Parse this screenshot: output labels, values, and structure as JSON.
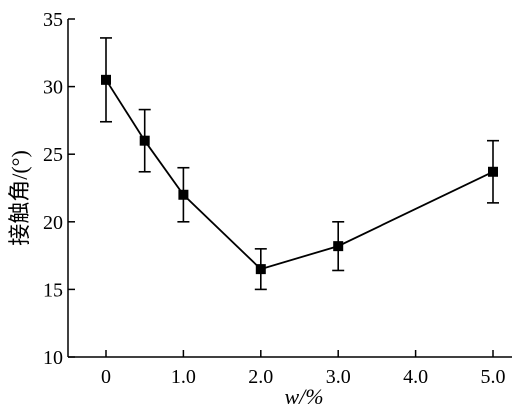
{
  "chart_data": {
    "type": "line",
    "title": "",
    "xlabel": "w/%",
    "ylabel": "接触角/(°)",
    "x_ticks": [
      0,
      1,
      2,
      3,
      4,
      5
    ],
    "x_tick_labels": [
      "0",
      "1.0",
      "2.0",
      "3.0",
      "4.0",
      "5.0"
    ],
    "y_ticks": [
      10,
      15,
      20,
      25,
      30,
      35
    ],
    "y_tick_labels": [
      "10",
      "15",
      "20",
      "25",
      "30",
      "35"
    ],
    "xlim": [
      -0.45,
      5.05
    ],
    "ylim": [
      10,
      35
    ],
    "grid": false,
    "legend": "none",
    "series": [
      {
        "x": [
          0,
          0.5,
          1.0,
          2.0,
          3.0,
          5.0
        ],
        "y": [
          30.5,
          26.0,
          22.0,
          16.5,
          18.2,
          23.7
        ],
        "err_low": [
          27.4,
          23.7,
          20.0,
          15.0,
          16.4,
          21.4
        ],
        "err_high": [
          33.6,
          28.3,
          24.0,
          18.0,
          20.0,
          26.0
        ],
        "marker": "square",
        "color": "#000000"
      }
    ]
  }
}
